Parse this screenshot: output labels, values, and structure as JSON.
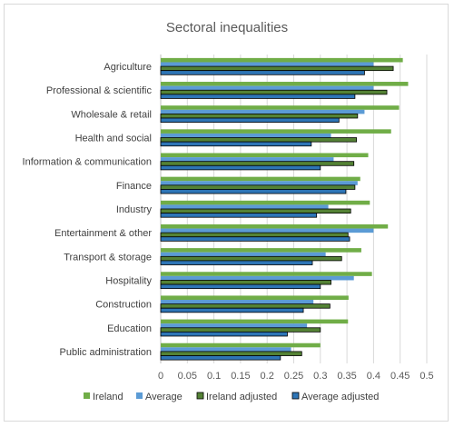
{
  "chart_data": {
    "type": "bar",
    "orientation": "horizontal",
    "title": "Sectoral inequalities",
    "categories": [
      "Agriculture",
      "Professional & scientific",
      "Wholesale & retail",
      "Health and social",
      "Information & communication",
      "Finance",
      "Industry",
      "Entertainment & other",
      "Transport & storage",
      "Hospitality",
      "Construction",
      "Education",
      "Public administration"
    ],
    "series": [
      {
        "name": "Ireland",
        "color": "#70ad47",
        "border": "#70ad47",
        "values": [
          0.455,
          0.465,
          0.448,
          0.433,
          0.39,
          0.375,
          0.393,
          0.427,
          0.377,
          0.397,
          0.353,
          0.352,
          0.3
        ]
      },
      {
        "name": "Average",
        "color": "#5b9bd5",
        "border": "#5b9bd5",
        "values": [
          0.4,
          0.4,
          0.383,
          0.32,
          0.325,
          0.37,
          0.315,
          0.4,
          0.31,
          0.363,
          0.287,
          0.275,
          0.245
        ]
      },
      {
        "name": "Ireland adjusted",
        "color": "#548235",
        "border": "#000000",
        "values": [
          0.437,
          0.425,
          0.37,
          0.368,
          0.363,
          0.365,
          0.357,
          0.352,
          0.34,
          0.32,
          0.318,
          0.3,
          0.265
        ]
      },
      {
        "name": "Average adjusted",
        "color": "#2e75b6",
        "border": "#000000",
        "values": [
          0.383,
          0.365,
          0.335,
          0.283,
          0.3,
          0.348,
          0.293,
          0.355,
          0.285,
          0.3,
          0.268,
          0.238,
          0.225
        ]
      }
    ],
    "xlim": [
      0,
      0.5
    ],
    "xticks": [
      "0",
      "0.05",
      "0.1",
      "0.15",
      "0.2",
      "0.25",
      "0.3",
      "0.35",
      "0.4",
      "0.45",
      "0.5"
    ],
    "grid": true,
    "legend_position": "bottom"
  }
}
